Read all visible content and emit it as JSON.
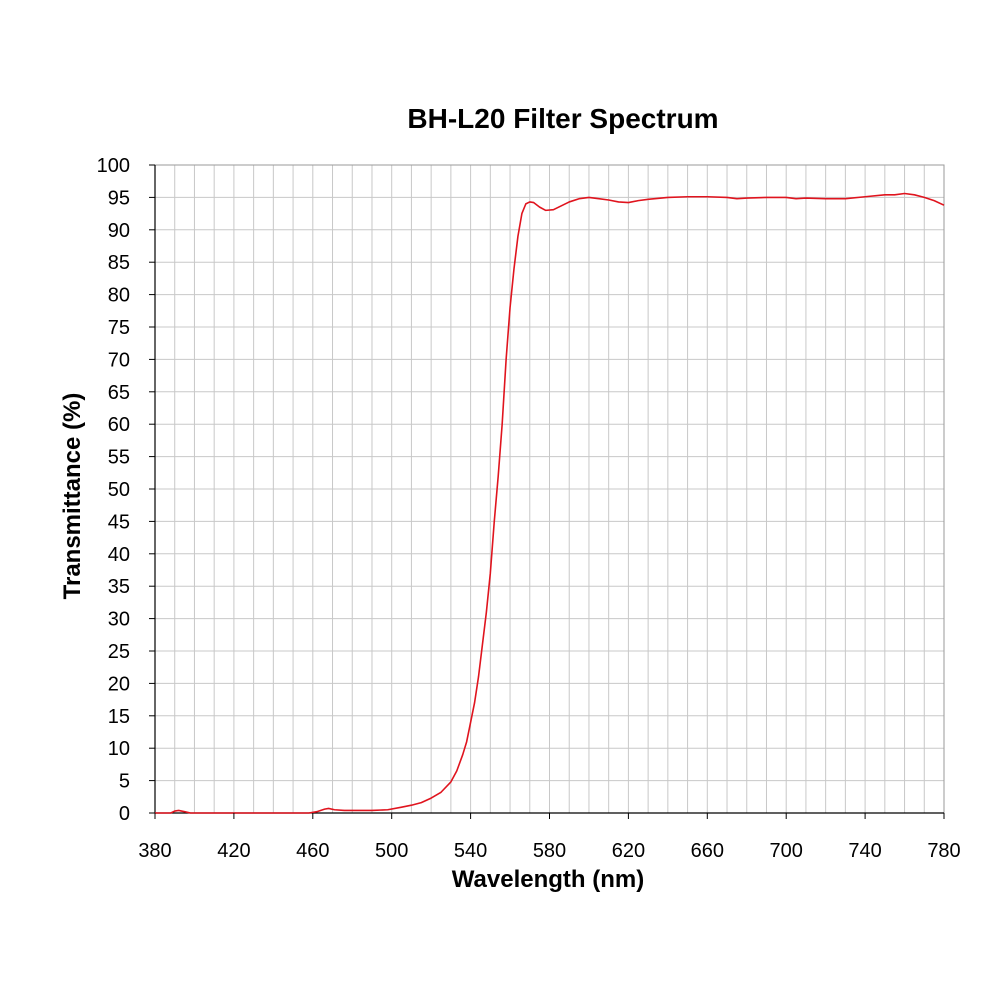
{
  "chart_data": {
    "type": "line",
    "title": "BH-L20 Filter Spectrum",
    "xlabel": "Wavelength (nm)",
    "ylabel": "Transmittance (%)",
    "xlim": [
      380,
      780
    ],
    "ylim": [
      0,
      100
    ],
    "x_ticks": [
      380,
      420,
      460,
      500,
      540,
      580,
      620,
      660,
      700,
      740,
      780
    ],
    "y_ticks": [
      0,
      5,
      10,
      15,
      20,
      25,
      30,
      35,
      40,
      45,
      50,
      55,
      60,
      65,
      70,
      75,
      80,
      85,
      90,
      95,
      100
    ],
    "x_minor_step": 10,
    "grid": true,
    "legend": "none",
    "series": [
      {
        "color": "#e0141e",
        "points": [
          [
            380,
            0
          ],
          [
            388,
            0
          ],
          [
            390,
            0.3
          ],
          [
            392,
            0.4
          ],
          [
            395,
            0.2
          ],
          [
            398,
            0
          ],
          [
            420,
            0
          ],
          [
            440,
            0
          ],
          [
            458,
            0
          ],
          [
            462,
            0.2
          ],
          [
            466,
            0.6
          ],
          [
            468,
            0.7
          ],
          [
            471,
            0.5
          ],
          [
            476,
            0.4
          ],
          [
            490,
            0.4
          ],
          [
            498,
            0.5
          ],
          [
            505,
            0.9
          ],
          [
            510,
            1.2
          ],
          [
            515,
            1.6
          ],
          [
            520,
            2.3
          ],
          [
            525,
            3.2
          ],
          [
            530,
            4.8
          ],
          [
            533,
            6.5
          ],
          [
            536,
            9.0
          ],
          [
            538,
            11.0
          ],
          [
            540,
            14.0
          ],
          [
            542,
            17.0
          ],
          [
            544,
            21.0
          ],
          [
            546,
            26.0
          ],
          [
            548,
            31.0
          ],
          [
            550,
            37.0
          ],
          [
            552,
            45.0
          ],
          [
            554,
            52.0
          ],
          [
            556,
            60.0
          ],
          [
            558,
            70.0
          ],
          [
            560,
            78.0
          ],
          [
            562,
            84.0
          ],
          [
            564,
            89.0
          ],
          [
            566,
            92.5
          ],
          [
            568,
            94.0
          ],
          [
            570,
            94.3
          ],
          [
            572,
            94.2
          ],
          [
            575,
            93.5
          ],
          [
            578,
            93.0
          ],
          [
            582,
            93.1
          ],
          [
            586,
            93.7
          ],
          [
            590,
            94.3
          ],
          [
            595,
            94.8
          ],
          [
            600,
            95.0
          ],
          [
            605,
            94.8
          ],
          [
            610,
            94.6
          ],
          [
            615,
            94.3
          ],
          [
            620,
            94.2
          ],
          [
            625,
            94.5
          ],
          [
            630,
            94.7
          ],
          [
            640,
            95.0
          ],
          [
            650,
            95.1
          ],
          [
            660,
            95.1
          ],
          [
            670,
            95.0
          ],
          [
            675,
            94.8
          ],
          [
            680,
            94.9
          ],
          [
            690,
            95.0
          ],
          [
            700,
            95.0
          ],
          [
            705,
            94.8
          ],
          [
            710,
            94.9
          ],
          [
            720,
            94.8
          ],
          [
            730,
            94.8
          ],
          [
            740,
            95.1
          ],
          [
            750,
            95.4
          ],
          [
            755,
            95.4
          ],
          [
            760,
            95.6
          ],
          [
            765,
            95.4
          ],
          [
            770,
            95.0
          ],
          [
            775,
            94.5
          ],
          [
            780,
            93.8
          ]
        ]
      }
    ]
  }
}
